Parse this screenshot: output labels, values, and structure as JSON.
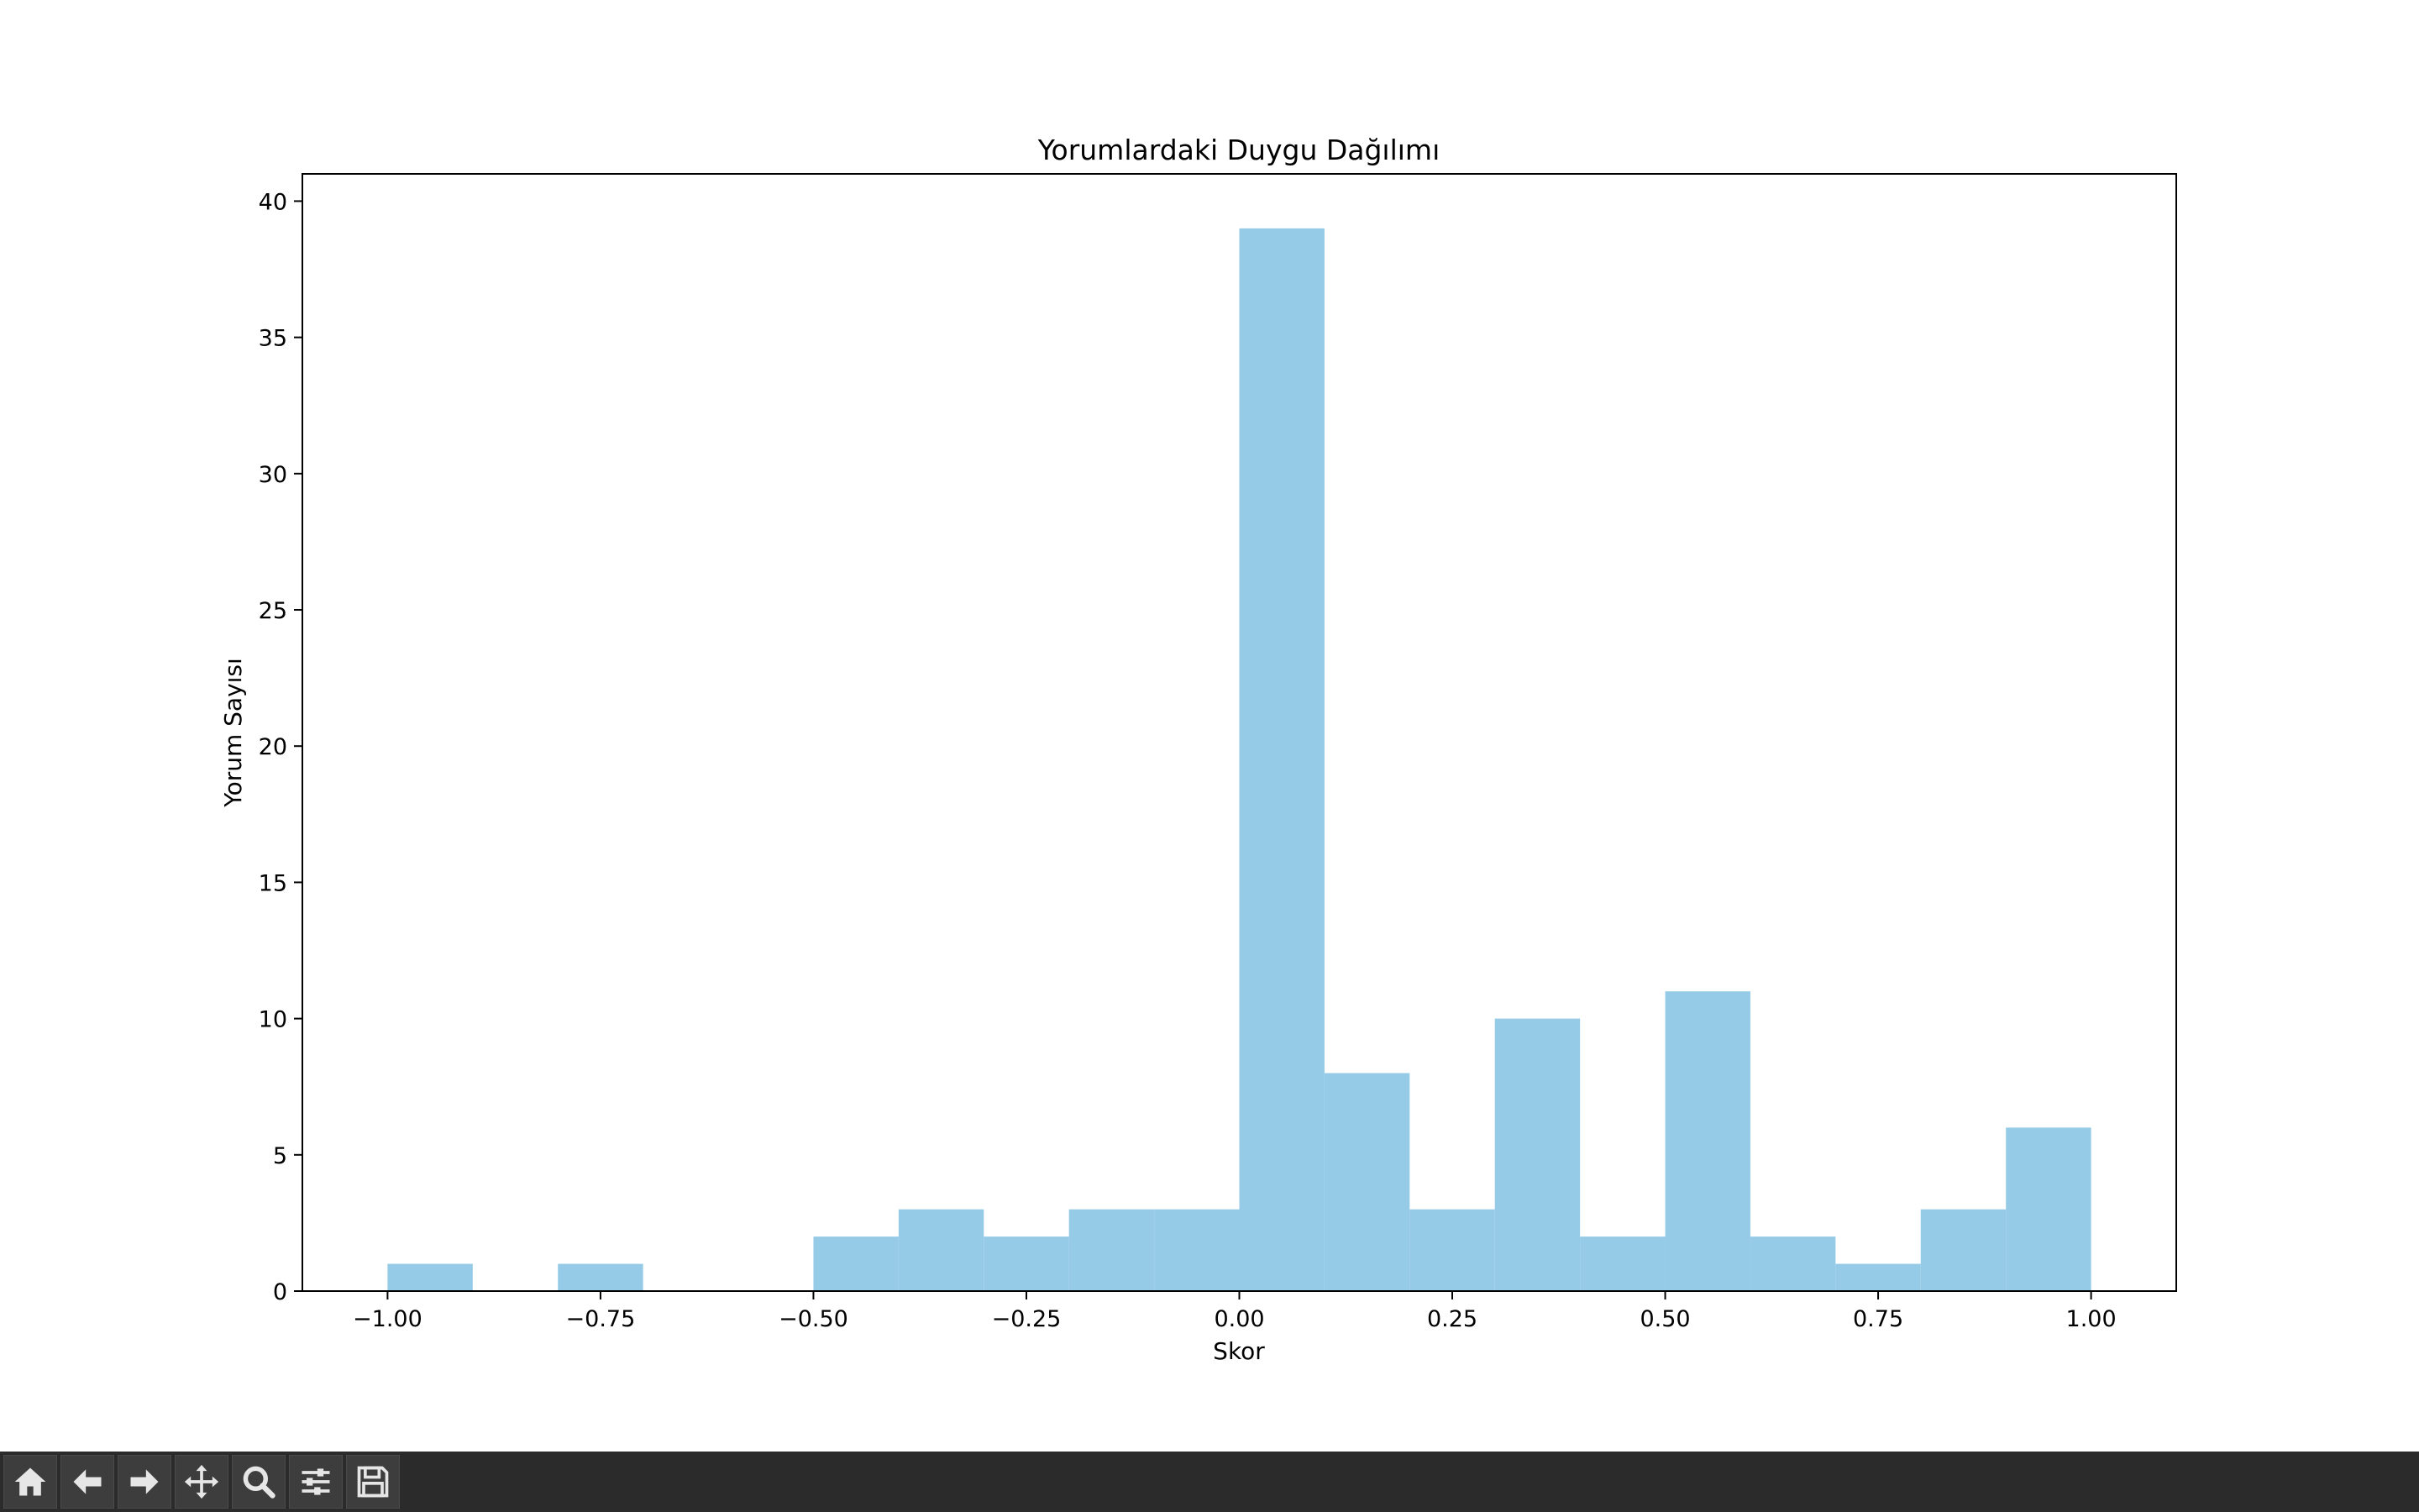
{
  "chart_data": {
    "type": "bar",
    "title": "Yorumlardaki Duygu Dağılımı",
    "xlabel": "Skor",
    "ylabel": "Yorum Sayısı",
    "bar_color": "#95cbe7",
    "bin_edges": [
      -1.0,
      -0.9,
      -0.8,
      -0.7,
      -0.6,
      -0.5,
      -0.4,
      -0.3,
      -0.2,
      -0.1,
      0.0,
      0.1,
      0.2,
      0.3,
      0.4,
      0.5,
      0.6,
      0.7,
      0.8,
      0.9,
      1.0
    ],
    "values": [
      1,
      0,
      1,
      0,
      0,
      2,
      3,
      2,
      3,
      3,
      39,
      8,
      3,
      10,
      2,
      11,
      2,
      1,
      3,
      6
    ],
    "xlim": [
      -1.1,
      1.1
    ],
    "ylim": [
      0,
      41
    ],
    "xticks": [
      -1.0,
      -0.75,
      -0.5,
      -0.25,
      0.0,
      0.25,
      0.5,
      0.75,
      1.0
    ],
    "xtick_labels": [
      "−1.00",
      "−0.75",
      "−0.50",
      "−0.25",
      "0.00",
      "0.25",
      "0.50",
      "0.75",
      "1.00"
    ],
    "yticks": [
      0,
      5,
      10,
      15,
      20,
      25,
      30,
      35,
      40
    ],
    "ytick_labels": [
      "0",
      "5",
      "10",
      "15",
      "20",
      "25",
      "30",
      "35",
      "40"
    ],
    "grid": false,
    "legend": "none"
  },
  "toolbar": {
    "buttons": [
      {
        "name": "home-button",
        "icon": "home-icon"
      },
      {
        "name": "back-button",
        "icon": "arrow-left-icon"
      },
      {
        "name": "forward-button",
        "icon": "arrow-right-icon"
      },
      {
        "name": "pan-button",
        "icon": "move-icon"
      },
      {
        "name": "zoom-button",
        "icon": "magnifier-icon"
      },
      {
        "name": "configure-subplots-button",
        "icon": "sliders-icon"
      },
      {
        "name": "save-button",
        "icon": "floppy-disk-icon"
      }
    ]
  }
}
